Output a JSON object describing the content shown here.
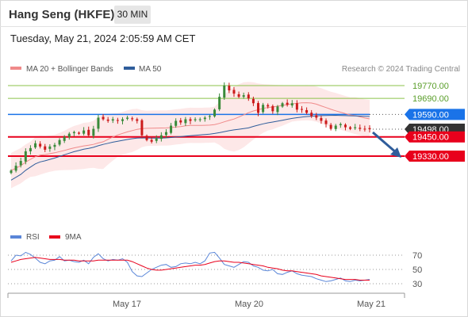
{
  "header": {
    "instrument": "Hang Seng (HKFE)",
    "timeframe": "30 MIN",
    "datetime": "Tuesday, May 21, 2024 2:05:59 AM CET"
  },
  "credit": "Research © 2024 Trading Central",
  "colors": {
    "bollinger_fill": "#fde4e4",
    "ma20": "#f08a8a",
    "ma50": "#2f5d9b",
    "support": "#e8001c",
    "current": "#1a73e8",
    "resistance": "#8bc34a",
    "last_price_box": "#333333",
    "arrow": "#2f5d9b",
    "rsi": "#5a86d8",
    "rsi_ma": "#e8001c",
    "candle_up": "#3a8a3a",
    "candle_down": "#cc1a1a"
  },
  "chart_data": [
    {
      "type": "candlestick",
      "legend": [
        {
          "label": "MA 20 + Bollinger Bands",
          "color": "#f08a8a"
        },
        {
          "label": "MA 50",
          "color": "#2f5d9b"
        }
      ],
      "x_ticks": [
        "May 17",
        "May 20",
        "May 21"
      ],
      "levels": [
        {
          "value": 19770.0,
          "label": "19770.00",
          "kind": "resistance"
        },
        {
          "value": 19690.0,
          "label": "19690.00",
          "kind": "resistance"
        },
        {
          "value": 19590.0,
          "label": "19590.00",
          "kind": "pivot"
        },
        {
          "value": 19498.0,
          "label": "19498.00",
          "kind": "last"
        },
        {
          "value": 19450.0,
          "label": "19450.00",
          "kind": "support"
        },
        {
          "value": 19330.0,
          "label": "19330.00",
          "kind": "support"
        }
      ],
      "ylim": [
        19150,
        19900
      ],
      "close": [
        19240,
        19270,
        19300,
        19360,
        19380,
        19410,
        19390,
        19370,
        19390,
        19400,
        19430,
        19450,
        19470,
        19480,
        19470,
        19490,
        19460,
        19500,
        19570,
        19560,
        19550,
        19560,
        19550,
        19560,
        19570,
        19560,
        19550,
        19460,
        19430,
        19420,
        19440,
        19460,
        19480,
        19520,
        19550,
        19540,
        19560,
        19550,
        19560,
        19560,
        19570,
        19580,
        19620,
        19700,
        19770,
        19740,
        19720,
        19700,
        19710,
        19690,
        19660,
        19600,
        19650,
        19640,
        19610,
        19640,
        19660,
        19650,
        19660,
        19620,
        19620,
        19600,
        19580,
        19570,
        19550,
        19530,
        19500,
        19520,
        19530,
        19510,
        19500,
        19510,
        19500,
        19500,
        19498
      ]
    },
    {
      "type": "line",
      "series": [
        {
          "name": "RSI",
          "color": "#5a86d8"
        },
        {
          "name": "9MA",
          "color": "#e8001c"
        }
      ],
      "ylim": [
        20,
        80
      ],
      "y_ticks": [
        70,
        50,
        30
      ],
      "rsi": [
        62,
        70,
        69,
        74,
        71,
        66,
        60,
        58,
        62,
        63,
        68,
        62,
        63,
        61,
        60,
        63,
        58,
        67,
        72,
        65,
        62,
        64,
        63,
        65,
        60,
        47,
        41,
        40,
        45,
        50,
        53,
        56,
        57,
        53,
        54,
        58,
        59,
        58,
        60,
        58,
        62,
        73,
        74,
        66,
        57,
        55,
        53,
        57,
        61,
        60,
        55,
        53,
        49,
        48,
        50,
        44,
        43,
        46,
        48,
        44,
        42,
        41,
        40,
        37,
        35,
        33,
        34,
        36,
        38,
        34,
        33,
        35,
        34,
        35,
        36
      ],
      "rsi_ma": [
        60,
        62,
        64,
        65,
        66,
        67,
        66,
        65,
        64,
        64,
        64,
        63,
        63,
        63,
        62,
        62,
        62,
        62,
        63,
        63,
        63,
        63,
        63,
        63,
        63,
        61,
        58,
        55,
        52,
        50,
        49,
        49,
        50,
        51,
        52,
        53,
        54,
        55,
        56,
        56,
        57,
        59,
        61,
        62,
        62,
        61,
        60,
        60,
        59,
        58,
        57,
        56,
        55,
        53,
        52,
        51,
        49,
        48,
        48,
        47,
        46,
        45,
        44,
        43,
        41,
        40,
        39,
        38,
        37,
        36,
        36,
        36,
        35,
        35,
        35
      ]
    }
  ]
}
